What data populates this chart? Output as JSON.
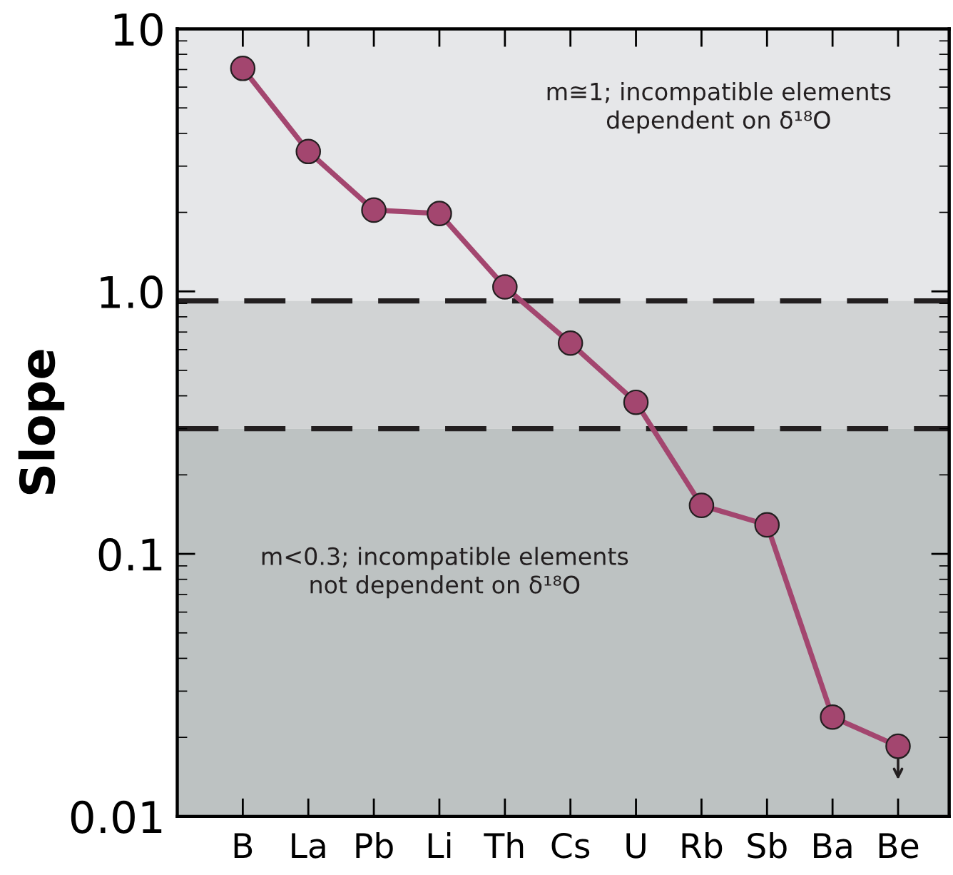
{
  "chart_data": {
    "type": "line",
    "ylabel": "Slope",
    "categories": [
      "B",
      "La",
      "Pb",
      "Li",
      "Th",
      "Cs",
      "U",
      "Rb",
      "Sb",
      "Ba",
      "Be"
    ],
    "series": [
      {
        "color": "#a3466f",
        "values": [
          7.07,
          3.41,
          2.04,
          1.98,
          1.04,
          0.635,
          0.378,
          0.153,
          0.129,
          0.0239,
          0.0185
        ]
      }
    ],
    "log": "y",
    "ylim": [
      0.01,
      10
    ],
    "yticks": [
      {
        "value": 0.01,
        "label": "0.01"
      },
      {
        "value": 0.1,
        "label": "0.1"
      },
      {
        "value": 1,
        "label": "1.0"
      },
      {
        "value": 10,
        "label": "10"
      }
    ],
    "marker": "circle",
    "line_style": "solid",
    "grid": false,
    "legend": false,
    "bands": [
      {
        "axis": "y",
        "from": 0.92,
        "to": 10,
        "color": "#e6e7e9",
        "label": "m≅1; incompatible elements\ndependent on δ¹⁸O"
      },
      {
        "axis": "y",
        "from": 0.3,
        "to": 0.92,
        "color": "#d1d3d4"
      },
      {
        "axis": "y",
        "from": 0.01,
        "to": 0.3,
        "color": "#bdc2c2",
        "label": "m<0.3; incompatible elements\nnot dependent on δ¹⁸O"
      }
    ],
    "ref_lines": [
      {
        "axis": "y",
        "value": 0.92,
        "line_style": "dashed",
        "color": "#231f20"
      },
      {
        "axis": "y",
        "value": 0.3,
        "line_style": "dashed",
        "color": "#231f20"
      }
    ]
  }
}
